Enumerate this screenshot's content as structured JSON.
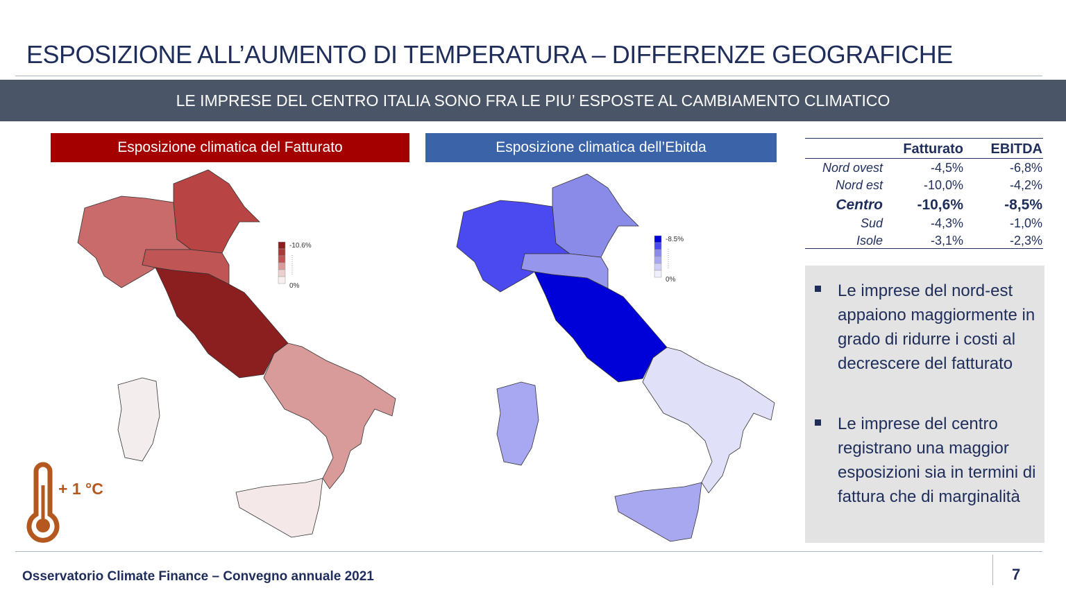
{
  "header": {
    "title": "ESPOSIZIONE ALL’AUMENTO DI TEMPERATURA – DIFFERENZE GEOGRAFICHE",
    "banner": "LE IMPRESE DEL CENTRO ITALIA SONO FRA LE PIU’ ESPOSTE AL CAMBIAMENTO CLIMATICO"
  },
  "maps": [
    {
      "title": "Esposizione climatica del Fatturato",
      "legend_max": "-10.6%",
      "legend_min": "0%"
    },
    {
      "title": "Esposizione climatica dell’Ebitda",
      "legend_max": "-8.5%",
      "legend_min": "0%"
    }
  ],
  "table": {
    "columns": [
      "Fatturato",
      "EBITDA"
    ],
    "rows": [
      [
        "Nord ovest",
        "-4,5%",
        "-6,8%"
      ],
      [
        "Nord est",
        "-10,0%",
        "-4,2%"
      ],
      [
        "Centro",
        "-10,6%",
        "-8,5%"
      ],
      [
        "Sud",
        "-4,3%",
        "-1,0%"
      ],
      [
        "Isole",
        "-3,1%",
        "-2,3%"
      ]
    ]
  },
  "bullets": [
    "Le imprese del nord-est appaiono maggiormente in grado di ridurre i costi al decrescere del fatturato",
    "Le imprese del centro registrano una maggior esposizioni sia in termini di fattura che di marginalità"
  ],
  "badge": "+ 1 °C",
  "footer": {
    "text": "Osservatorio Climate Finance – Convegno annuale 2021",
    "page": "7"
  }
}
